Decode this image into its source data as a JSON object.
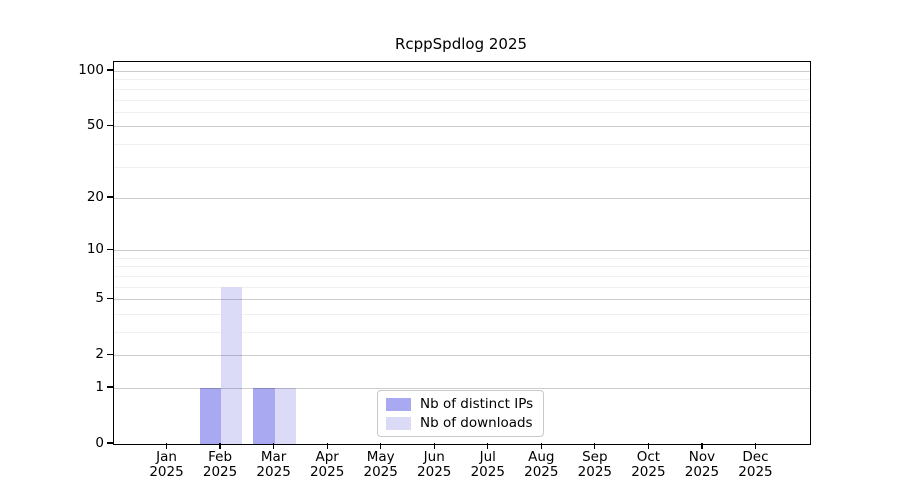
{
  "title": "RcppSpdlog 2025",
  "chart_data": {
    "type": "bar",
    "title": "RcppSpdlog 2025",
    "categories": [
      "Jan",
      "Feb",
      "Mar",
      "Apr",
      "May",
      "Jun",
      "Jul",
      "Aug",
      "Sep",
      "Oct",
      "Nov",
      "Dec"
    ],
    "year": "2025",
    "series": [
      {
        "name": "Nb of distinct IPs",
        "color": "#a9a9f2",
        "values": [
          0,
          1,
          1,
          0,
          0,
          0,
          0,
          0,
          0,
          0,
          0,
          0
        ]
      },
      {
        "name": "Nb of downloads",
        "color": "#dbdbf8",
        "values": [
          0,
          6,
          1,
          0,
          0,
          0,
          0,
          0,
          0,
          0,
          0,
          0
        ]
      }
    ],
    "yscale": "log1p",
    "ylim": [
      0,
      112
    ],
    "yticks": [
      0,
      1,
      2,
      5,
      10,
      20,
      50,
      100
    ],
    "minor_gridlines": [
      3,
      4,
      6,
      7,
      8,
      9,
      30,
      40,
      60,
      70,
      80,
      90
    ],
    "grid": true,
    "legend_position": "lower-center-inside",
    "axis_color": "#000000",
    "major_grid_color": "#cccccc",
    "minor_grid_color": "#f0f0f0"
  },
  "legend": {
    "items": [
      "Nb of distinct IPs",
      "Nb of downloads"
    ]
  }
}
